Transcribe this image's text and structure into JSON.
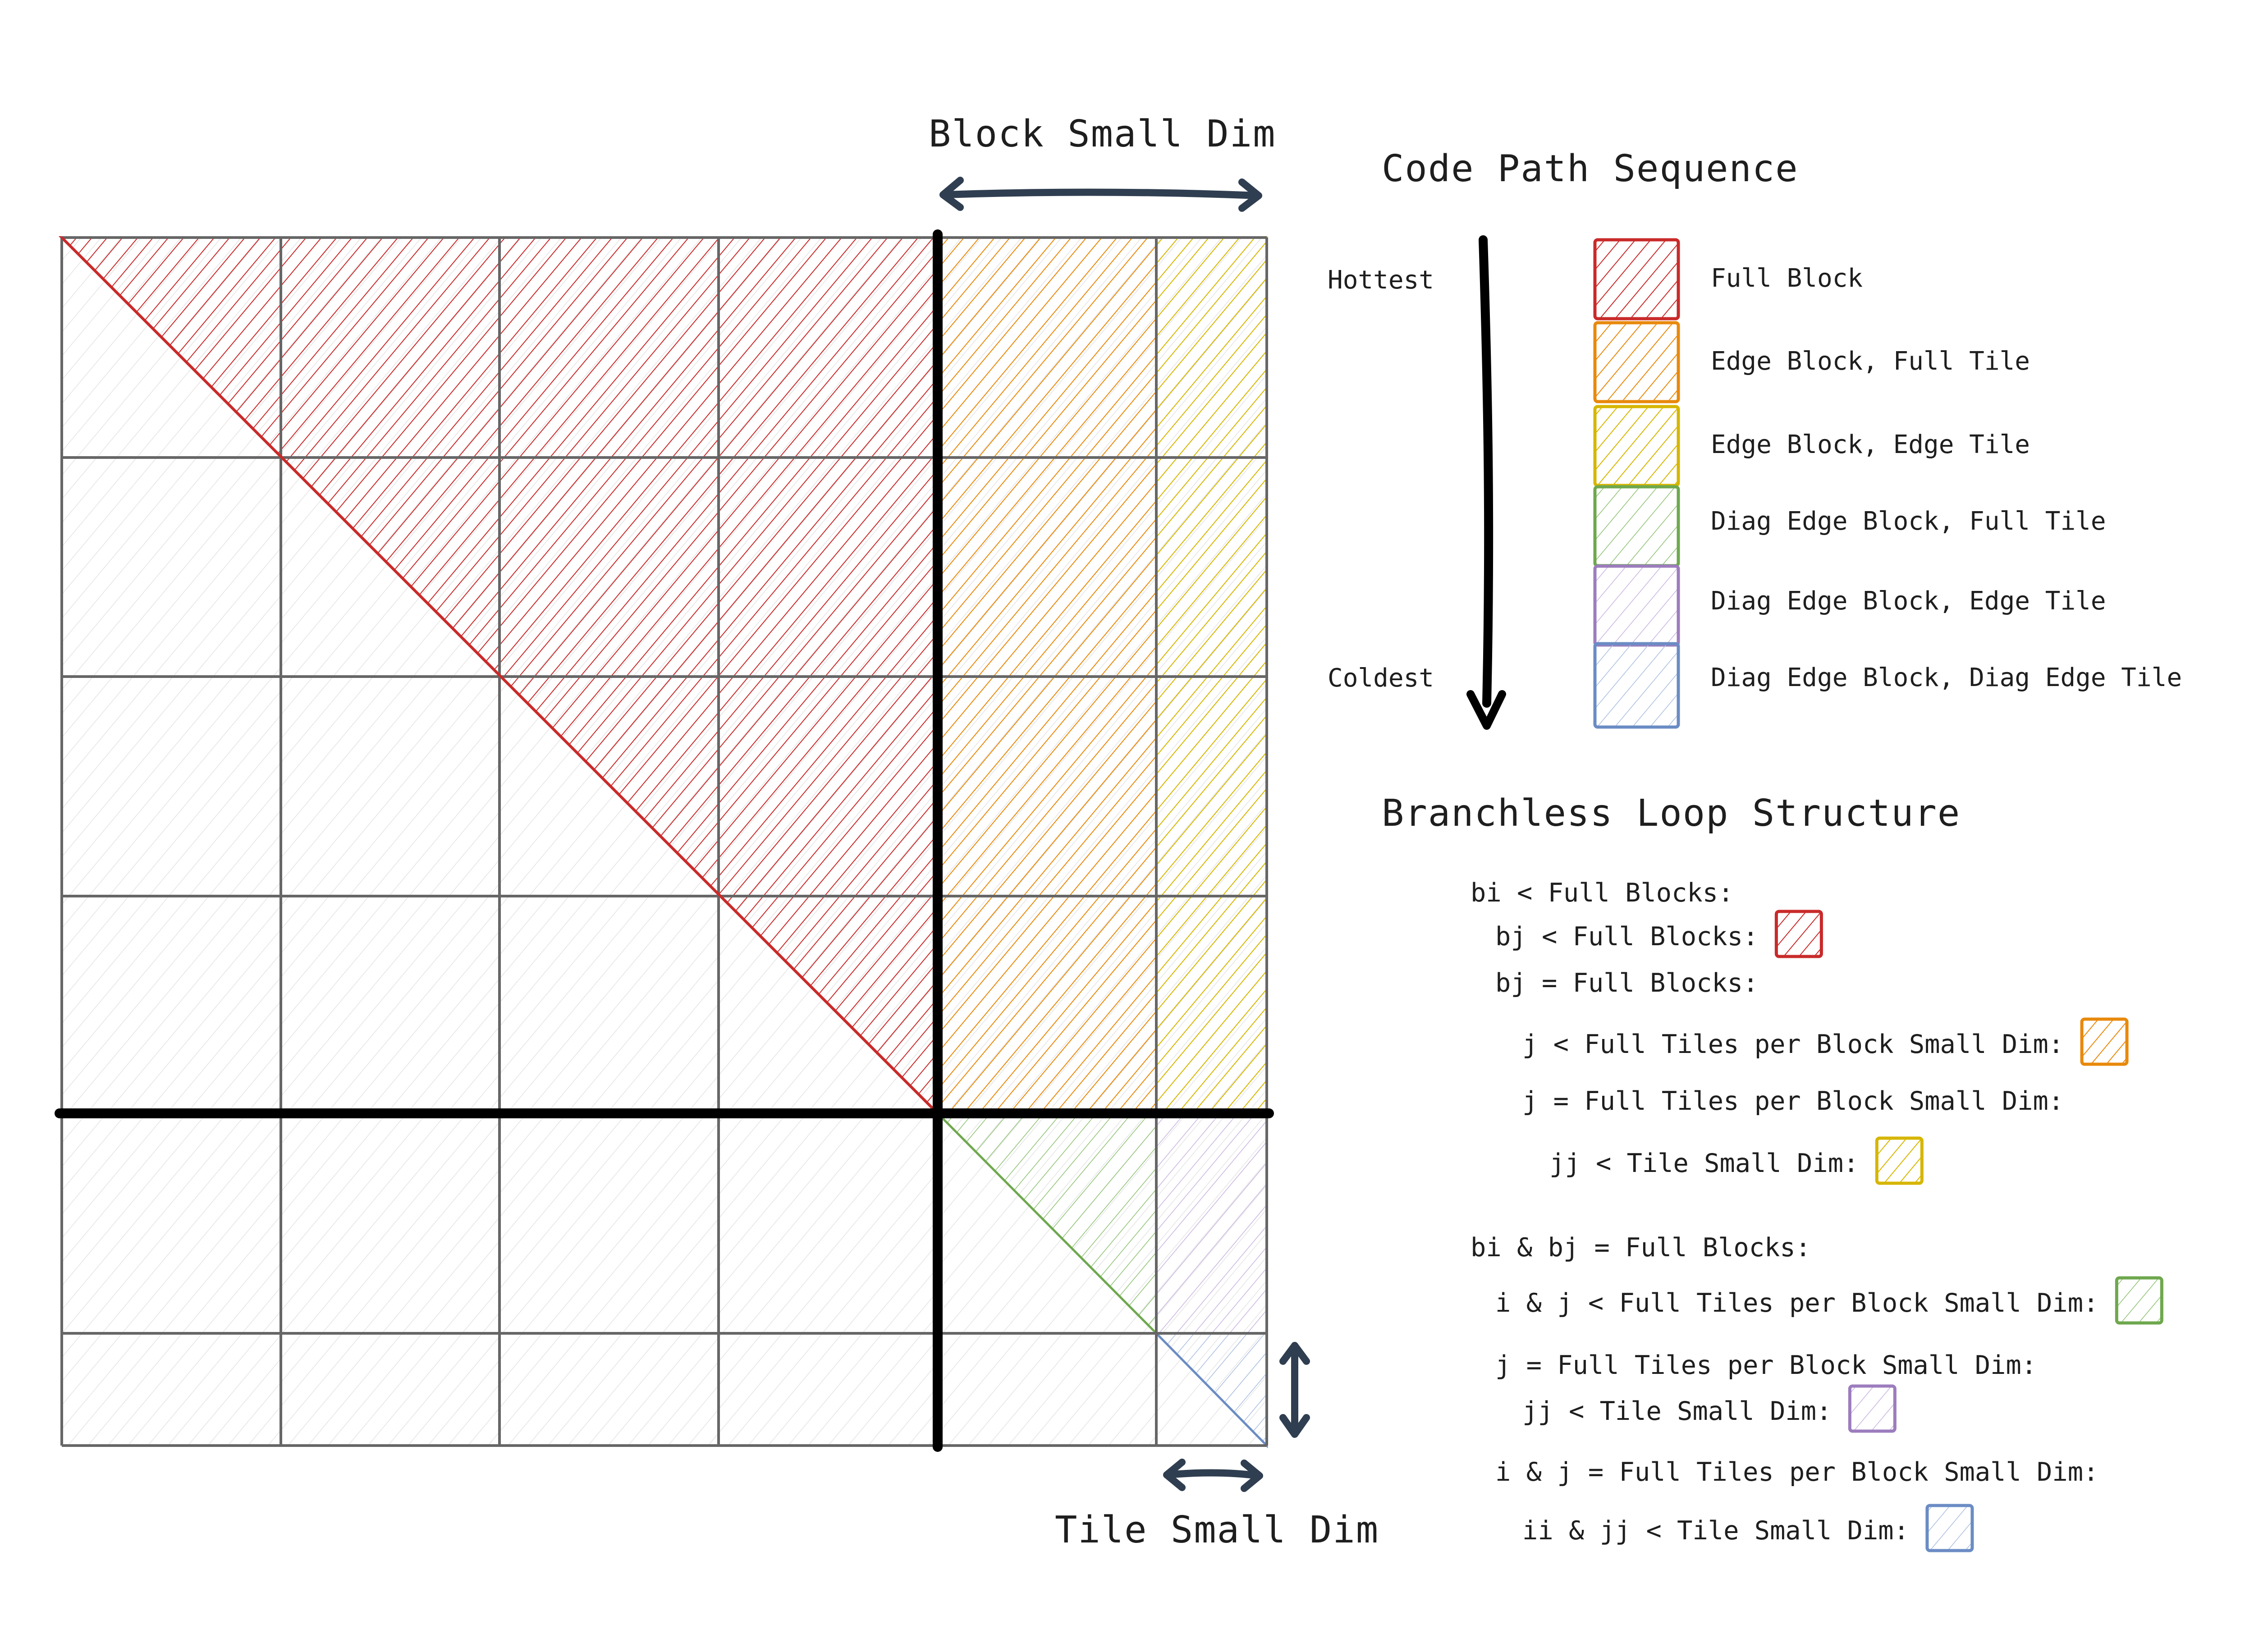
{
  "labels": {
    "block_small_dim": "Block Small Dim",
    "tile_small_dim": "Tile Small Dim"
  },
  "legend": {
    "title": "Code Path Sequence",
    "hottest": "Hottest",
    "coldest": "Coldest",
    "items": [
      {
        "label": "Full Block",
        "color": "#c92a2a"
      },
      {
        "label": "Edge Block, Full Tile",
        "color": "#e8890c"
      },
      {
        "label": "Edge Block, Edge Tile",
        "color": "#d6b600"
      },
      {
        "label": "Diag Edge Block, Full Tile",
        "color": "#6ea84e"
      },
      {
        "label": "Diag Edge Block, Edge Tile",
        "color": "#9c7cbd"
      },
      {
        "label": "Diag Edge Block, Diag Edge Tile",
        "color": "#6b8cc4"
      }
    ]
  },
  "loop": {
    "title": "Branchless Loop Structure",
    "lines": [
      {
        "text": "bi < Full Blocks:",
        "swatch": null
      },
      {
        "text": "bj < Full Blocks:",
        "swatch": 0
      },
      {
        "text": "bj = Full Blocks:",
        "swatch": null
      },
      {
        "text": "j < Full Tiles per Block Small Dim:",
        "swatch": 1
      },
      {
        "text": "j = Full Tiles per Block Small Dim:",
        "swatch": null
      },
      {
        "text": "jj < Tile Small Dim:",
        "swatch": 2
      },
      {
        "text": "bi & bj = Full Blocks:",
        "swatch": null
      },
      {
        "text": "i & j < Full Tiles per Block Small Dim:",
        "swatch": 3
      },
      {
        "text": "j = Full Tiles per Block Small Dim:",
        "swatch": null
      },
      {
        "text": "jj < Tile Small Dim:",
        "swatch": 4
      },
      {
        "text": "i & j = Full Tiles per Block Small Dim:",
        "swatch": null
      },
      {
        "text": "ii & jj < Tile Small Dim:",
        "swatch": 5
      }
    ]
  },
  "colors": {
    "grid": "#666666",
    "gray_fill": "#e6e6e6",
    "arrow": "#2f3e50",
    "divider": "#000000"
  }
}
